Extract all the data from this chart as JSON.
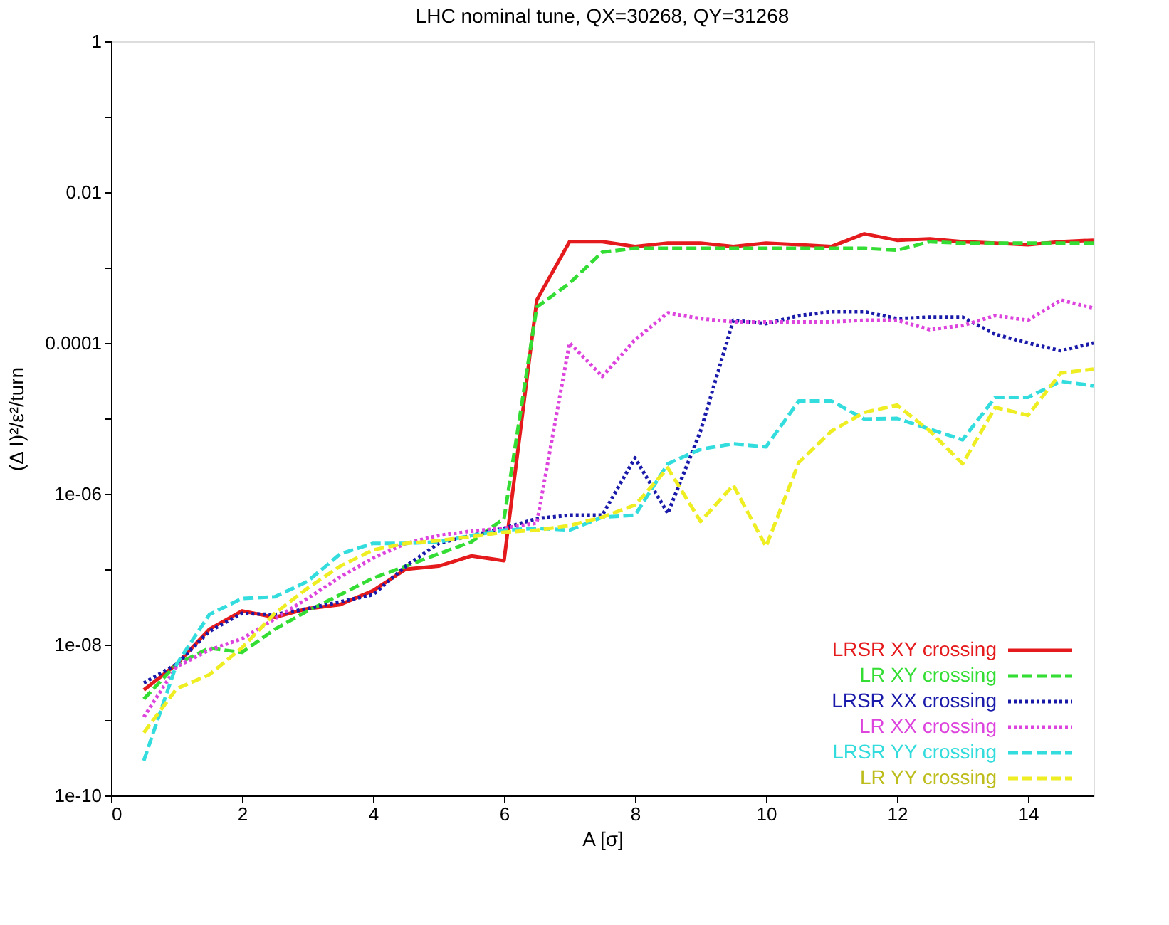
{
  "chart_data": {
    "type": "line",
    "title": "LHC nominal tune, QX=30268, QY=31268",
    "xlabel": "A [σ]",
    "ylabel": "(Δ I)²/ε²/turn",
    "x": [
      0.5,
      1,
      1.5,
      2,
      2.5,
      3,
      3.5,
      4,
      4.5,
      5,
      5.5,
      6,
      6.5,
      7,
      7.5,
      8,
      8.5,
      9,
      9.5,
      10,
      10.5,
      11,
      11.5,
      12,
      12.5,
      13,
      13.5,
      14,
      14.5,
      15
    ],
    "xlim": [
      0,
      15
    ],
    "xticks": [
      0,
      2,
      4,
      6,
      8,
      10,
      12,
      14
    ],
    "ylim": [
      1e-10,
      1
    ],
    "yticks": [
      1,
      {
        "value": 0.1,
        "label": null
      },
      0.01,
      {
        "value": 0.001,
        "label": null
      },
      0.0001,
      {
        "value": 1e-05,
        "label": null
      },
      {
        "value": 1e-06,
        "label": "1e-06"
      },
      {
        "value": 1e-07,
        "label": null
      },
      {
        "value": 1e-08,
        "label": "1e-08"
      },
      {
        "value": 1e-09,
        "label": null
      },
      {
        "value": 1e-10,
        "label": "1e-10"
      }
    ],
    "log": "y",
    "grid": false,
    "legend": "bottom right",
    "marker": "none",
    "series": [
      {
        "name": "LRSR XY crossing",
        "color": "#e41a1c",
        "line_style": "solid",
        "values": [
          2.5e-09,
          5.5e-09,
          1.6e-08,
          2.8e-08,
          2.3e-08,
          3e-08,
          3.4e-08,
          5.2e-08,
          1e-07,
          1.1e-07,
          1.5e-07,
          1.3e-07,
          0.00037,
          0.0022,
          0.0022,
          0.0019,
          0.0021,
          0.0021,
          0.0019,
          0.0021,
          0.002,
          0.0019,
          0.0028,
          0.0023,
          0.0024,
          0.0022,
          0.0021,
          0.002,
          0.0022,
          0.0023
        ]
      },
      {
        "name": "LR XY crossing",
        "color": "#33dd33",
        "line_style": "dashed",
        "values": [
          1.9e-09,
          5.5e-09,
          9e-09,
          7.9e-09,
          1.6e-08,
          2.8e-08,
          4.6e-08,
          7.6e-08,
          1.1e-07,
          1.6e-07,
          2.3e-07,
          4.7e-07,
          0.0003,
          0.00062,
          0.0016,
          0.0018,
          0.0018,
          0.0018,
          0.0018,
          0.0018,
          0.0018,
          0.0018,
          0.0018,
          0.0017,
          0.0022,
          0.0021,
          0.0021,
          0.0021,
          0.0021,
          0.0021
        ]
      },
      {
        "name": "LRSR XX crossing",
        "color": "#1a1aaa",
        "line_style": "dotted",
        "values": [
          3.1e-09,
          5.5e-09,
          1.5e-08,
          2.6e-08,
          2.5e-08,
          3e-08,
          3.7e-08,
          4.6e-08,
          1.1e-07,
          2.2e-07,
          2.8e-07,
          3.5e-07,
          4.7e-07,
          5.2e-07,
          5.2e-07,
          3e-06,
          5.5e-07,
          6.8e-06,
          0.0002,
          0.00018,
          0.00023,
          0.00026,
          0.00026,
          0.00021,
          0.00022,
          0.00022,
          0.00013,
          0.0001,
          7.9e-05,
          0.0001
        ]
      },
      {
        "name": "LR XX crossing",
        "color": "#dd44dd",
        "line_style": "dotted",
        "values": [
          1.1e-09,
          5.1e-09,
          8.5e-09,
          1.2e-08,
          2.2e-08,
          4.1e-08,
          7.9e-08,
          1.4e-07,
          2.2e-07,
          2.8e-07,
          3.2e-07,
          3.5e-07,
          4.1e-07,
          0.0001,
          3.6e-05,
          0.00011,
          0.00025,
          0.00021,
          0.00019,
          0.00019,
          0.00019,
          0.00019,
          0.0002,
          0.0002,
          0.00015,
          0.00017,
          0.00023,
          0.0002,
          0.00037,
          0.00029
        ]
      },
      {
        "name": "LRSR YY crossing",
        "color": "#33dddd",
        "line_style": "dashed",
        "values": [
          2.9e-10,
          5.5e-09,
          2.5e-08,
          4.1e-08,
          4.3e-08,
          6.9e-08,
          1.6e-07,
          2.2e-07,
          2.2e-07,
          2.3e-07,
          2.8e-07,
          3.3e-07,
          3.5e-07,
          3.3e-07,
          4.9e-07,
          5.2e-07,
          2.5e-06,
          3.9e-06,
          4.6e-06,
          4.2e-06,
          1.7e-05,
          1.7e-05,
          9.8e-06,
          1e-05,
          7.2e-06,
          5.2e-06,
          1.9e-05,
          1.9e-05,
          3.1e-05,
          2.7e-05
        ]
      },
      {
        "name": "LR YY crossing",
        "color": "#eeee22",
        "line_style": "dashed",
        "values": [
          6.8e-10,
          2.6e-09,
          4e-09,
          9.1e-09,
          2.6e-08,
          5.6e-08,
          1.1e-07,
          1.8e-07,
          2.2e-07,
          2.4e-07,
          2.7e-07,
          3.1e-07,
          3.3e-07,
          3.8e-07,
          4.9e-07,
          7.1e-07,
          2.2e-06,
          4.3e-07,
          1.3e-06,
          2e-07,
          2.6e-06,
          6.8e-06,
          1.2e-05,
          1.5e-05,
          6.8e-06,
          2.5e-06,
          1.4e-05,
          1.1e-05,
          4e-05,
          4.5e-05
        ]
      }
    ]
  }
}
